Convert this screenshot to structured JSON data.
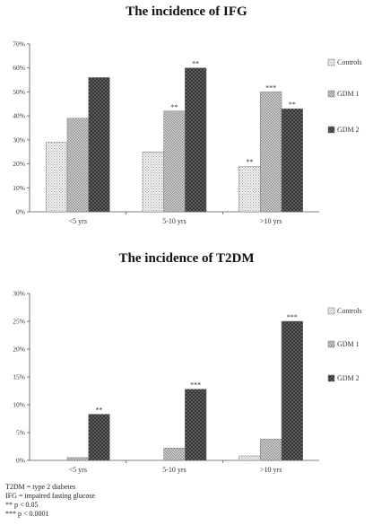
{
  "chart_data": [
    {
      "type": "bar",
      "title": "The incidence of IFG",
      "categories": [
        "<5 yrs",
        "5-10 yrs",
        ">10 yrs"
      ],
      "series": [
        {
          "name": "Controls",
          "values": [
            29,
            25,
            19
          ]
        },
        {
          "name": "GDM 1",
          "values": [
            39,
            42,
            50
          ]
        },
        {
          "name": "GDM 2",
          "values": [
            56,
            60,
            43
          ]
        }
      ],
      "significance": [
        [
          "",
          "",
          "**"
        ],
        [
          "",
          "**",
          "***"
        ],
        [
          "",
          "**",
          "**"
        ]
      ],
      "ylim": [
        0,
        70
      ],
      "yticks": [
        "0%",
        "10%",
        "20%",
        "30%",
        "40%",
        "50%",
        "60%",
        "70%"
      ],
      "grid": false,
      "legend": "right"
    },
    {
      "type": "bar",
      "title": "The incidence of T2DM",
      "categories": [
        "<5 yrs",
        "5-10 yrs",
        ">10 yrs"
      ],
      "series": [
        {
          "name": "Controls",
          "values": [
            0,
            0,
            0.8
          ]
        },
        {
          "name": "GDM 1",
          "values": [
            0.5,
            2.2,
            3.8
          ]
        },
        {
          "name": "GDM 2",
          "values": [
            8.3,
            12.8,
            25
          ]
        }
      ],
      "significance": [
        [
          "",
          "",
          ""
        ],
        [
          "",
          "",
          ""
        ],
        [
          "**",
          "***",
          "***"
        ]
      ],
      "ylim": [
        0,
        30
      ],
      "yticks": [
        "0%",
        "5%",
        "10%",
        "15%",
        "20%",
        "25%",
        "30%"
      ],
      "grid": false,
      "legend": "right"
    }
  ],
  "footnotes": [
    "T2DM = type 2 diabetes",
    "IFG = impaired fasting glucose",
    "** p < 0.05",
    "*** p < 0.0001"
  ]
}
